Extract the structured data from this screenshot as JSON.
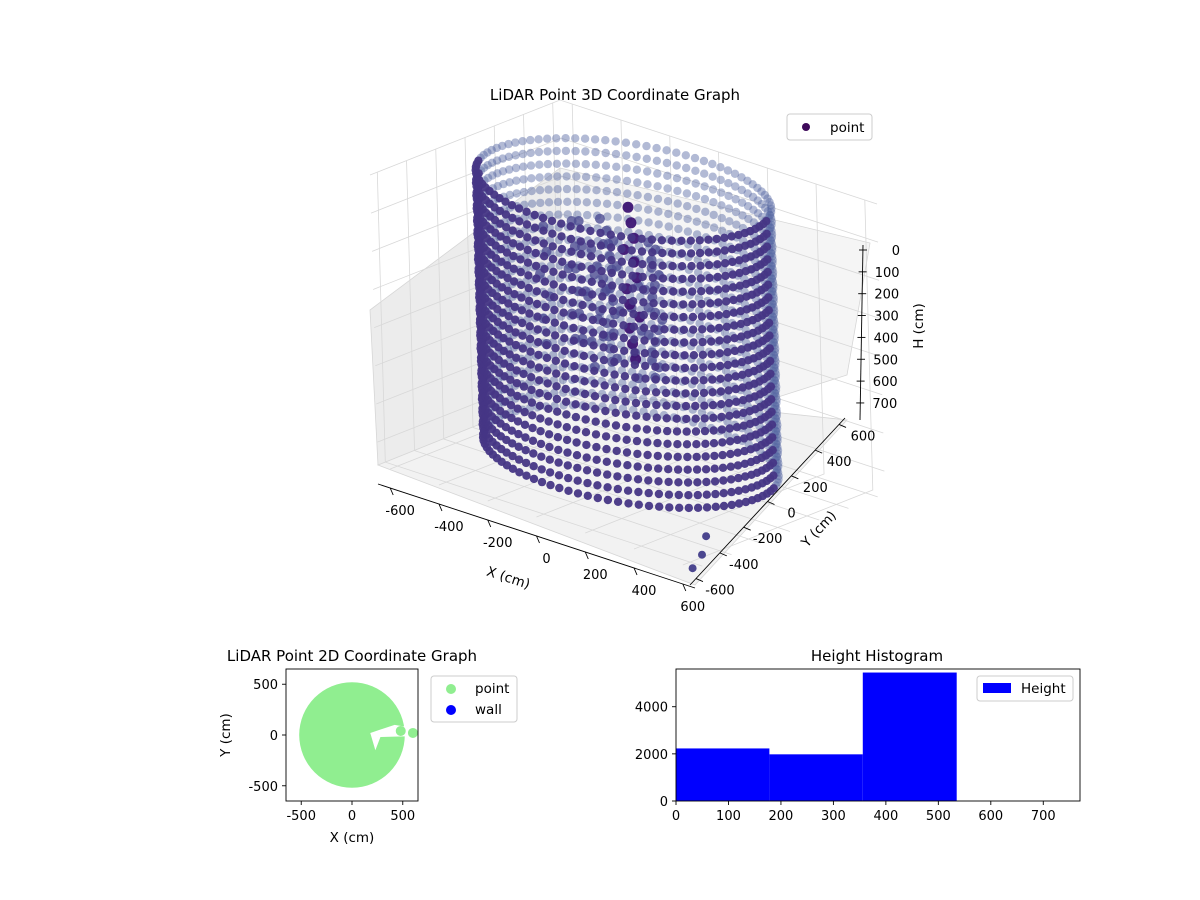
{
  "chart_data": [
    {
      "type": "scatter",
      "projection": "3d",
      "title": "LiDAR Point 3D Coordinate Graph",
      "xlabel": "X (cm)",
      "ylabel": "Y (cm)",
      "zlabel": "H (cm)",
      "xlim": [
        -650,
        650
      ],
      "ylim": [
        -650,
        650
      ],
      "zlim": [
        0,
        760
      ],
      "z_inverted": true,
      "xticks": [
        -600,
        -400,
        -200,
        0,
        200,
        400,
        600
      ],
      "yticks": [
        -600,
        -400,
        -200,
        0,
        200,
        400,
        600
      ],
      "zticks": [
        0,
        100,
        200,
        300,
        400,
        500,
        600,
        700
      ],
      "grid": true,
      "legend": {
        "position": "top-right",
        "entries": [
          {
            "label": "point",
            "color": "#3e0a5a"
          }
        ]
      },
      "colormap": "viridis",
      "series": [
        {
          "name": "point",
          "shape": "cylindrical wall",
          "radius": 520,
          "center": [
            0,
            0
          ],
          "h_range": [
            0,
            700
          ],
          "interior_points_h_range": [
            50,
            500
          ],
          "color_range": [
            "#3b0f70",
            "#6e8fb8"
          ]
        }
      ]
    },
    {
      "type": "scatter",
      "title": "LiDAR Point 2D Coordinate Graph",
      "xlabel": "X (cm)",
      "ylabel": "Y (cm)",
      "xlim": [
        -650,
        650
      ],
      "ylim": [
        -650,
        650
      ],
      "xticks": [
        -500,
        0,
        500
      ],
      "yticks": [
        -500,
        0,
        500
      ],
      "grid": false,
      "legend": {
        "position": "outside right",
        "entries": [
          {
            "label": "point",
            "color": "#90ee90"
          },
          {
            "label": "wall",
            "color": "#0000ff"
          }
        ]
      },
      "series": [
        {
          "name": "point",
          "color": "#90ee90",
          "shape": "filled disk",
          "center": [
            0,
            0
          ],
          "radius": 520
        },
        {
          "name": "wall",
          "color": "#0000ff"
        }
      ]
    },
    {
      "type": "bar",
      "subtype": "histogram",
      "title": "Height Histogram",
      "xlabel": "",
      "ylabel": "",
      "xlim": [
        0,
        770
      ],
      "ylim": [
        0,
        5600
      ],
      "xticks": [
        0,
        100,
        200,
        300,
        400,
        500,
        600,
        700
      ],
      "yticks": [
        0,
        2000,
        4000
      ],
      "legend": {
        "position": "top-right",
        "entries": [
          {
            "label": "Height",
            "color": "#0000ff"
          }
        ]
      },
      "bins": [
        {
          "x0": 0,
          "x1": 178,
          "count": 2230
        },
        {
          "x0": 178,
          "x1": 356,
          "count": 1980
        },
        {
          "x0": 356,
          "x1": 535,
          "count": 5450
        }
      ],
      "color": "#0000ff"
    }
  ]
}
